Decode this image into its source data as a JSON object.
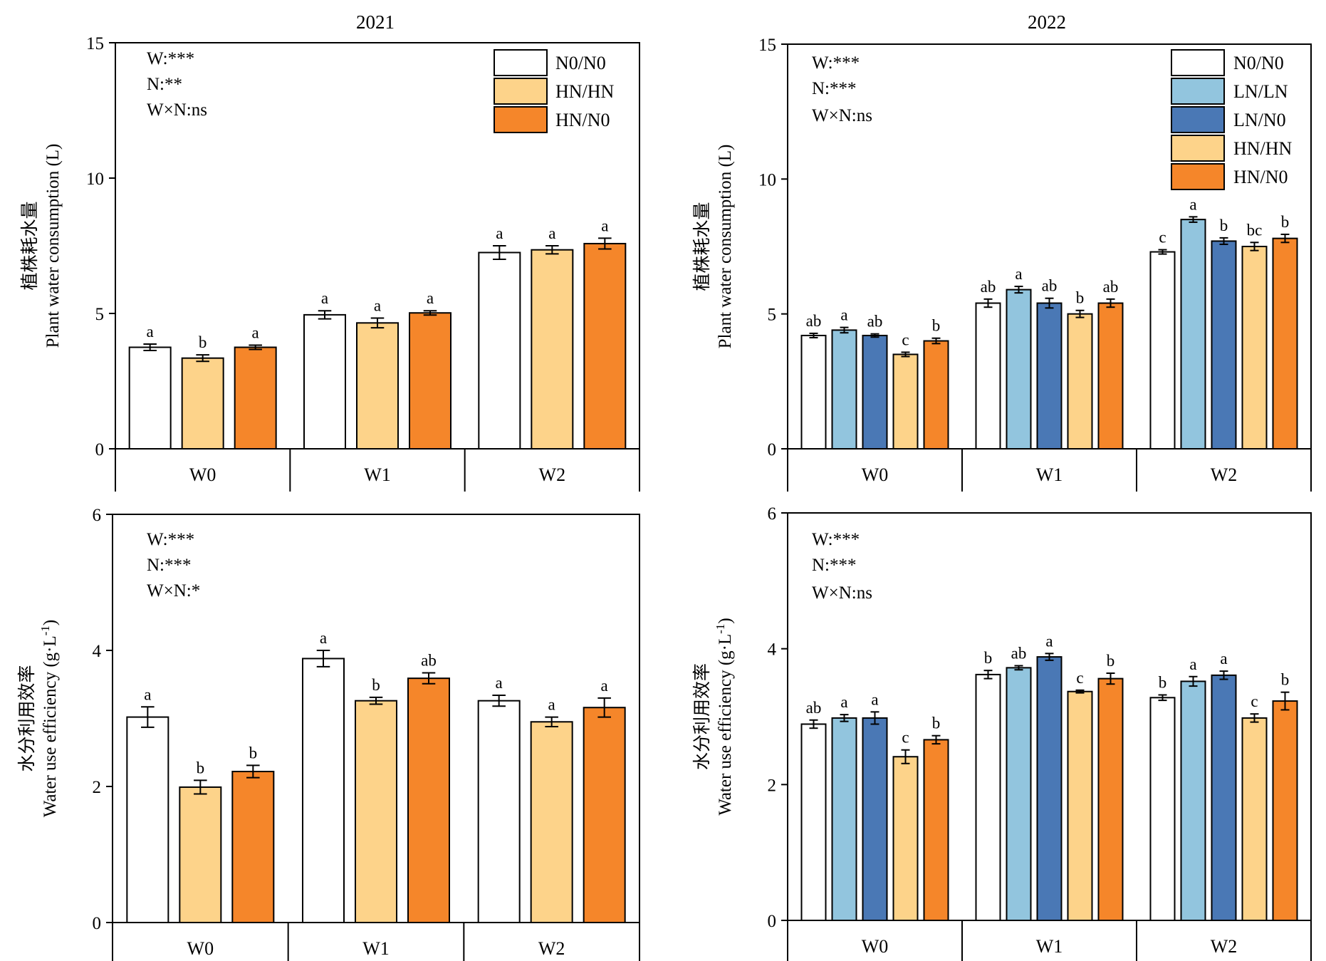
{
  "colors": {
    "N0/N0": "#ffffff",
    "LN/LN": "#92c5de",
    "LN/N0": "#4a78b5",
    "HN/HN": "#fdd38a",
    "HN/N0": "#f5862a"
  },
  "chart_data": [
    {
      "type": "bar",
      "title": "2021",
      "ylabel_cn": "植株耗水量",
      "ylabel": "Plant water consumption (L)",
      "ylim": [
        0,
        15
      ],
      "yticks": [
        "0",
        "5",
        "10",
        "15"
      ],
      "categories": [
        "W0",
        "W1",
        "W2"
      ],
      "stats": [
        "W:***",
        "N:**",
        "W×N:ns"
      ],
      "series": [
        {
          "name": "N0/N0",
          "values": [
            3.75,
            4.95,
            7.25
          ],
          "errors": [
            0.12,
            0.15,
            0.25
          ],
          "labels": [
            "a",
            "a",
            "a"
          ]
        },
        {
          "name": "HN/HN",
          "values": [
            3.35,
            4.65,
            7.35
          ],
          "errors": [
            0.12,
            0.18,
            0.15
          ],
          "labels": [
            "b",
            "a",
            "a"
          ]
        },
        {
          "name": "HN/N0",
          "values": [
            3.75,
            5.02,
            7.58
          ],
          "errors": [
            0.08,
            0.08,
            0.2
          ],
          "labels": [
            "a",
            "a",
            "a"
          ]
        }
      ]
    },
    {
      "type": "bar",
      "title": "2022",
      "ylabel_cn": "植株耗水量",
      "ylabel": "Plant water consumption (L)",
      "ylim": [
        0,
        15
      ],
      "yticks": [
        "0",
        "5",
        "10",
        "15"
      ],
      "categories": [
        "W0",
        "W1",
        "W2"
      ],
      "stats": [
        "W:***",
        "N:***",
        "W×N:ns"
      ],
      "series": [
        {
          "name": "N0/N0",
          "values": [
            4.2,
            5.4,
            7.3
          ],
          "errors": [
            0.08,
            0.15,
            0.08
          ],
          "labels": [
            "ab",
            "ab",
            "c"
          ]
        },
        {
          "name": "LN/LN",
          "values": [
            4.4,
            5.9,
            8.5
          ],
          "errors": [
            0.1,
            0.12,
            0.1
          ],
          "labels": [
            "a",
            "a",
            "a"
          ]
        },
        {
          "name": "LN/N0",
          "values": [
            4.2,
            5.4,
            7.7
          ],
          "errors": [
            0.06,
            0.18,
            0.12
          ],
          "labels": [
            "ab",
            "ab",
            "b"
          ]
        },
        {
          "name": "HN/HN",
          "values": [
            3.5,
            5.0,
            7.5
          ],
          "errors": [
            0.08,
            0.13,
            0.15
          ],
          "labels": [
            "c",
            "b",
            "bc"
          ]
        },
        {
          "name": "HN/N0",
          "values": [
            4.0,
            5.4,
            7.8
          ],
          "errors": [
            0.1,
            0.15,
            0.15
          ],
          "labels": [
            "b",
            "ab",
            "b"
          ]
        }
      ]
    },
    {
      "type": "bar",
      "title": "",
      "ylabel_cn": "水分利用效率",
      "ylabel": "Water use efficiency (g·L",
      "ylabel_sup": "-1",
      "ylabel_end": ")",
      "ylim": [
        0,
        6
      ],
      "yticks": [
        "0",
        "2",
        "4",
        "6"
      ],
      "categories": [
        "W0",
        "W1",
        "W2"
      ],
      "stats": [
        "W:***",
        "N:***",
        "W×N:*"
      ],
      "series": [
        {
          "name": "N0/N0",
          "values": [
            3.02,
            3.88,
            3.26
          ],
          "errors": [
            0.15,
            0.12,
            0.08
          ],
          "labels": [
            "a",
            "a",
            "a"
          ]
        },
        {
          "name": "HN/HN",
          "values": [
            1.99,
            3.26,
            2.95
          ],
          "errors": [
            0.1,
            0.05,
            0.07
          ],
          "labels": [
            "b",
            "b",
            "a"
          ]
        },
        {
          "name": "HN/N0",
          "values": [
            2.22,
            3.59,
            3.16
          ],
          "errors": [
            0.09,
            0.08,
            0.14
          ],
          "labels": [
            "b",
            "ab",
            "a"
          ]
        }
      ]
    },
    {
      "type": "bar",
      "title": "",
      "ylabel_cn": "水分利用效率",
      "ylabel": "Water use efficiency (g·L",
      "ylabel_sup": "-1",
      "ylabel_end": ")",
      "ylim": [
        0,
        6
      ],
      "yticks": [
        "0",
        "2",
        "4",
        "6"
      ],
      "categories": [
        "W0",
        "W1",
        "W2"
      ],
      "stats": [
        "W:***",
        "N:***",
        "W×N:ns"
      ],
      "series": [
        {
          "name": "N0/N0",
          "values": [
            2.89,
            3.62,
            3.28
          ],
          "errors": [
            0.06,
            0.06,
            0.04
          ],
          "labels": [
            "ab",
            "b",
            "b"
          ]
        },
        {
          "name": "LN/LN",
          "values": [
            2.98,
            3.72,
            3.52
          ],
          "errors": [
            0.05,
            0.03,
            0.07
          ],
          "labels": [
            "a",
            "ab",
            "a"
          ]
        },
        {
          "name": "LN/N0",
          "values": [
            2.98,
            3.88,
            3.61
          ],
          "errors": [
            0.09,
            0.05,
            0.06
          ],
          "labels": [
            "a",
            "a",
            "a"
          ]
        },
        {
          "name": "HN/HN",
          "values": [
            2.41,
            3.37,
            2.98
          ],
          "errors": [
            0.1,
            0.02,
            0.06
          ],
          "labels": [
            "c",
            "c",
            "c"
          ]
        },
        {
          "name": "HN/N0",
          "values": [
            2.66,
            3.56,
            3.23
          ],
          "errors": [
            0.06,
            0.08,
            0.13
          ],
          "labels": [
            "b",
            "b",
            "b"
          ]
        }
      ]
    }
  ]
}
